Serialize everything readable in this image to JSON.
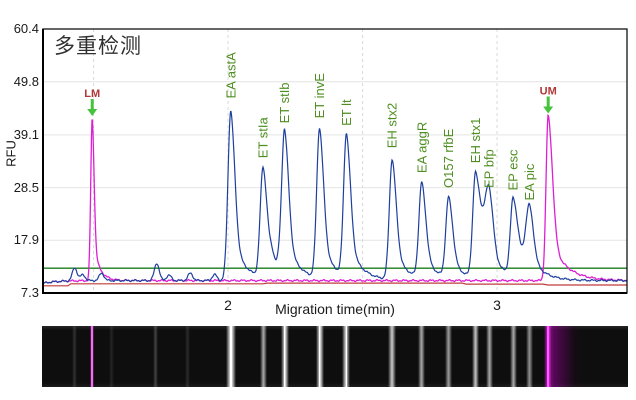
{
  "chart_data": {
    "type": "line",
    "title": "多重检测",
    "xlabel": "Migration time(min)",
    "ylabel": "RFU",
    "x_range": [
      1.312,
      3.483
    ],
    "y_range": [
      7.3,
      60.4
    ],
    "y_ticks": [
      "60.4",
      "49.8",
      "39.1",
      "28.5",
      "17.9",
      "7.3"
    ],
    "x_ticks": [
      {
        "value": 2,
        "label": "2"
      },
      {
        "value": 3,
        "label": "3"
      }
    ],
    "v_gridlines": [
      1.5,
      2.0,
      2.5,
      3.0
    ],
    "grid": true,
    "legend_position": "none",
    "baseline_rfu": 9.8,
    "threshold_line": {
      "rfu": 12.3,
      "color": "#1b7c1b"
    },
    "red_line": {
      "color": "#c23b3b",
      "points": [
        [
          1.312,
          8.75
        ],
        [
          1.405,
          8.75
        ],
        [
          1.415,
          9.15
        ],
        [
          2.13,
          9.15
        ],
        [
          2.145,
          9.3
        ],
        [
          2.87,
          9.3
        ],
        [
          2.885,
          9.1
        ],
        [
          3.17,
          9.1
        ],
        [
          3.19,
          8.9
        ],
        [
          3.483,
          8.9
        ]
      ]
    },
    "marker_series": {
      "name": "size-marker-trace",
      "color": "#dd1fd4",
      "peaks": [
        {
          "label": "LM",
          "time": 1.495,
          "rfu": 42.5,
          "width_hint": {
            "wl": 0.0055,
            "wr": 0.007,
            "tau": 0.022
          }
        },
        {
          "label": "UM",
          "time": 3.19,
          "rfu": 43.0,
          "width_hint": {
            "wl": 0.008,
            "wr": 0.016,
            "tau": 0.058
          }
        }
      ]
    },
    "sample_series": {
      "name": "sample-trace",
      "color": "#1e3f9e",
      "peaks": [
        {
          "label": "EA astA",
          "time": 2.01,
          "rfu": 44.0
        },
        {
          "label": "ET stIa",
          "time": 2.13,
          "rfu": 32.0
        },
        {
          "label": "ET stIb",
          "time": 2.21,
          "rfu": 39.0
        },
        {
          "label": "ET invE",
          "time": 2.34,
          "rfu": 40.0
        },
        {
          "label": "ET lt",
          "time": 2.44,
          "rfu": 38.5
        },
        {
          "label": "EH stx2",
          "time": 2.61,
          "rfu": 34.0
        },
        {
          "label": "EA aggR",
          "time": 2.72,
          "rfu": 29.0
        },
        {
          "label": "O157 rfbE",
          "time": 2.82,
          "rfu": 26.0
        },
        {
          "label": "EH stx1",
          "time": 2.92,
          "rfu": 31.0,
          "width_hint": {
            "wr": 0.02,
            "tau": 0.05
          }
        },
        {
          "label": "EP bfp",
          "time": 2.97,
          "rfu": 26.0,
          "width_hint": {
            "wl": 0.015
          }
        },
        {
          "label": "EP esc",
          "time": 3.06,
          "rfu": 25.5,
          "width_hint": {
            "wr": 0.018,
            "tau": 0.05
          }
        },
        {
          "label": "EA pic",
          "time": 3.12,
          "rfu": 23.5,
          "width_hint": {
            "wl": 0.014
          }
        }
      ],
      "minor_bumps": [
        {
          "time": 1.43,
          "rfu": 12.4
        },
        {
          "time": 1.46,
          "rfu": 11.0
        },
        {
          "time": 1.53,
          "rfu": 11.3
        },
        {
          "time": 1.735,
          "rfu": 13.3
        },
        {
          "time": 1.78,
          "rfu": 10.9
        },
        {
          "time": 1.86,
          "rfu": 11.3
        },
        {
          "time": 1.95,
          "rfu": 11.0
        },
        {
          "time": 2.165,
          "rfu": 11.9
        },
        {
          "time": 2.19,
          "rfu": 11.6
        }
      ]
    },
    "peak_label_color": "#4f8f22",
    "marker_label_color": "#b23737",
    "marker_arrow_color": "#46c33c",
    "gridline_color": "#e4e4e4",
    "v_gridline_color": "#d9d9d9",
    "border_color": "#000000"
  },
  "gel_data": {
    "background": "#0e0e0e",
    "bands": [
      {
        "t": 1.43,
        "c": "120,120,120",
        "i": 0.3,
        "w": 5,
        "name": "gel-band-faint"
      },
      {
        "t": 1.495,
        "c": "210,60,210",
        "i": 0.95,
        "w": 4,
        "core": "#f26df2",
        "name": "gel-band-lm"
      },
      {
        "t": 1.565,
        "c": "110,110,110",
        "i": 0.22,
        "w": 5,
        "name": "gel-band-faint"
      },
      {
        "t": 1.73,
        "c": "150,150,150",
        "i": 0.35,
        "w": 5,
        "name": "gel-band-faint"
      },
      {
        "t": 1.85,
        "c": "120,120,120",
        "i": 0.25,
        "w": 5,
        "name": "gel-band-faint"
      },
      {
        "t": 2.01,
        "c": "255,255,255",
        "i": 0.95,
        "w": 10,
        "core": "#ffffff",
        "name": "gel-band-astA"
      },
      {
        "t": 2.13,
        "c": "255,255,255",
        "i": 0.6,
        "w": 7,
        "name": "gel-band-stIa"
      },
      {
        "t": 2.21,
        "c": "255,255,255",
        "i": 0.85,
        "w": 8,
        "core": "#ffffff",
        "name": "gel-band-stIb"
      },
      {
        "t": 2.34,
        "c": "255,255,255",
        "i": 0.85,
        "w": 8,
        "core": "#ffffff",
        "name": "gel-band-invE"
      },
      {
        "t": 2.44,
        "c": "255,255,255",
        "i": 0.8,
        "w": 8,
        "core": "#ffffff",
        "name": "gel-band-lt"
      },
      {
        "t": 2.61,
        "c": "255,255,255",
        "i": 0.72,
        "w": 8,
        "name": "gel-band-stx2"
      },
      {
        "t": 2.72,
        "c": "255,255,255",
        "i": 0.6,
        "w": 7,
        "name": "gel-band-aggR"
      },
      {
        "t": 2.82,
        "c": "255,255,255",
        "i": 0.55,
        "w": 7,
        "name": "gel-band-rfbE"
      },
      {
        "t": 2.92,
        "c": "255,255,255",
        "i": 0.7,
        "w": 7,
        "name": "gel-band-stx1"
      },
      {
        "t": 2.97,
        "c": "255,255,255",
        "i": 0.6,
        "w": 7,
        "name": "gel-band-bfp"
      },
      {
        "t": 3.06,
        "c": "255,255,255",
        "i": 0.6,
        "w": 7,
        "name": "gel-band-esc"
      },
      {
        "t": 3.12,
        "c": "255,255,255",
        "i": 0.5,
        "w": 7,
        "name": "gel-band-pic"
      },
      {
        "t": 3.19,
        "c": "230,30,230",
        "i": 1.0,
        "w": 9,
        "core": "#ff5cff",
        "fade": 32,
        "name": "gel-band-um"
      }
    ]
  }
}
